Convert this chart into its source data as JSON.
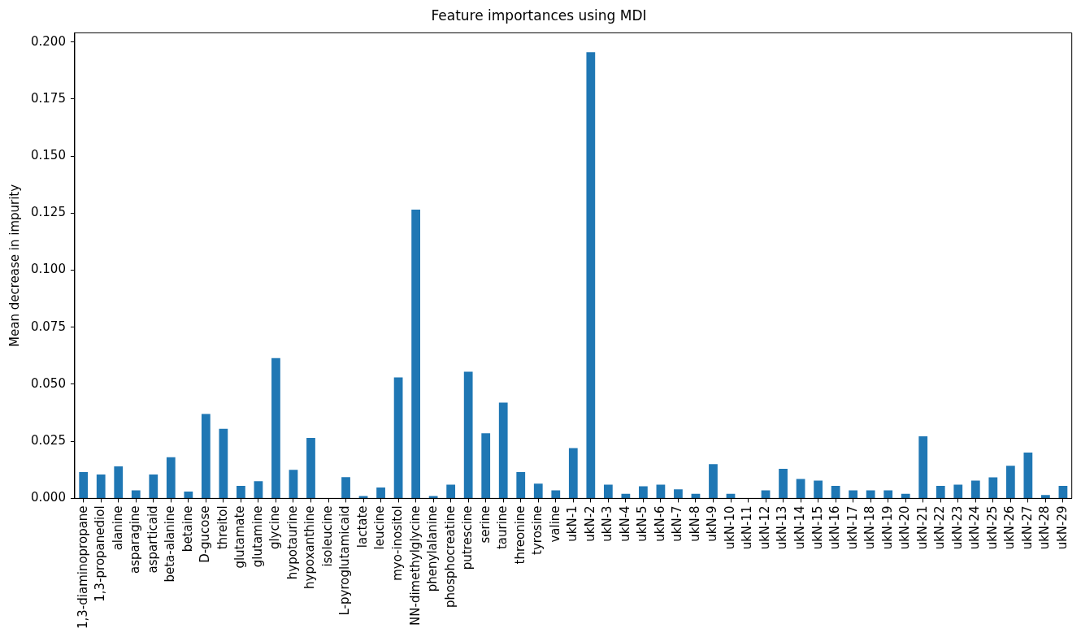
{
  "chart_data": {
    "type": "bar",
    "title": "Feature importances using MDI",
    "ylabel": "Mean decrease in impurity",
    "categories": [
      "1,3-diaminopropane",
      "1,3-propanediol",
      "alanine",
      "asparagine",
      "asparticaid",
      "beta-alanine",
      "betaine",
      "D-gucose",
      "threitol",
      "glutamate",
      "glutamine",
      "glycine",
      "hypotaurine",
      "hypoxanthine",
      "isoleucine",
      "L-pyroglutamicaid",
      "lactate",
      "leucine",
      "myo-inositol",
      "NN-dimethylglycine",
      "phenylalanine",
      "phosphocreatine",
      "putrescine",
      "serine",
      "taurine",
      "threonine",
      "tyrosine",
      "valine",
      "ukN-1",
      "ukN-2",
      "ukN-3",
      "ukN-4",
      "ukN-5",
      "ukN-6",
      "ukN-7",
      "ukN-8",
      "ukN-9",
      "ukN-10",
      "ukN-11",
      "ukN-12",
      "ukN-13",
      "ukN-14",
      "ukN-15",
      "ukN-16",
      "ukN-17",
      "ukN-18",
      "ukN-19",
      "ukN-20",
      "ukN-21",
      "ukN-22",
      "ukN-23",
      "ukN-24",
      "ukN-25",
      "ukN-26",
      "ukN-27",
      "ukN-28",
      "ukN-29"
    ],
    "values": [
      0.0115,
      0.0105,
      0.014,
      0.0035,
      0.0105,
      0.018,
      0.003,
      0.037,
      0.0305,
      0.0055,
      0.0075,
      0.0615,
      0.0125,
      0.0265,
      0,
      0.0093,
      0.001,
      0.0048,
      0.053,
      0.1265,
      0.001,
      0.006,
      0.0555,
      0.0285,
      0.042,
      0.0115,
      0.0065,
      0.0035,
      0.022,
      0.1955,
      0.006,
      0.002,
      0.0053,
      0.006,
      0.004,
      0.002,
      0.015,
      0.002,
      0,
      0.0035,
      0.013,
      0.0085,
      0.0078,
      0.0055,
      0.0035,
      0.0035,
      0.0035,
      0.002,
      0.0272,
      0.0055,
      0.006,
      0.0078,
      0.0092,
      0.0143,
      0.0201,
      0.0015,
      0.0055
    ],
    "color": "#1f77b4",
    "ylim": [
      0,
      0.204
    ],
    "yticks": [
      {
        "value": 0,
        "label": "0.000"
      },
      {
        "value": 0.025,
        "label": "0.025"
      },
      {
        "value": 0.05,
        "label": "0.050"
      },
      {
        "value": 0.075,
        "label": "0.075"
      },
      {
        "value": 0.1,
        "label": "0.100"
      },
      {
        "value": 0.125,
        "label": "0.125"
      },
      {
        "value": 0.15,
        "label": "0.150"
      },
      {
        "value": 0.175,
        "label": "0.175"
      },
      {
        "value": 0.2,
        "label": "0.200"
      }
    ],
    "legend": false
  }
}
